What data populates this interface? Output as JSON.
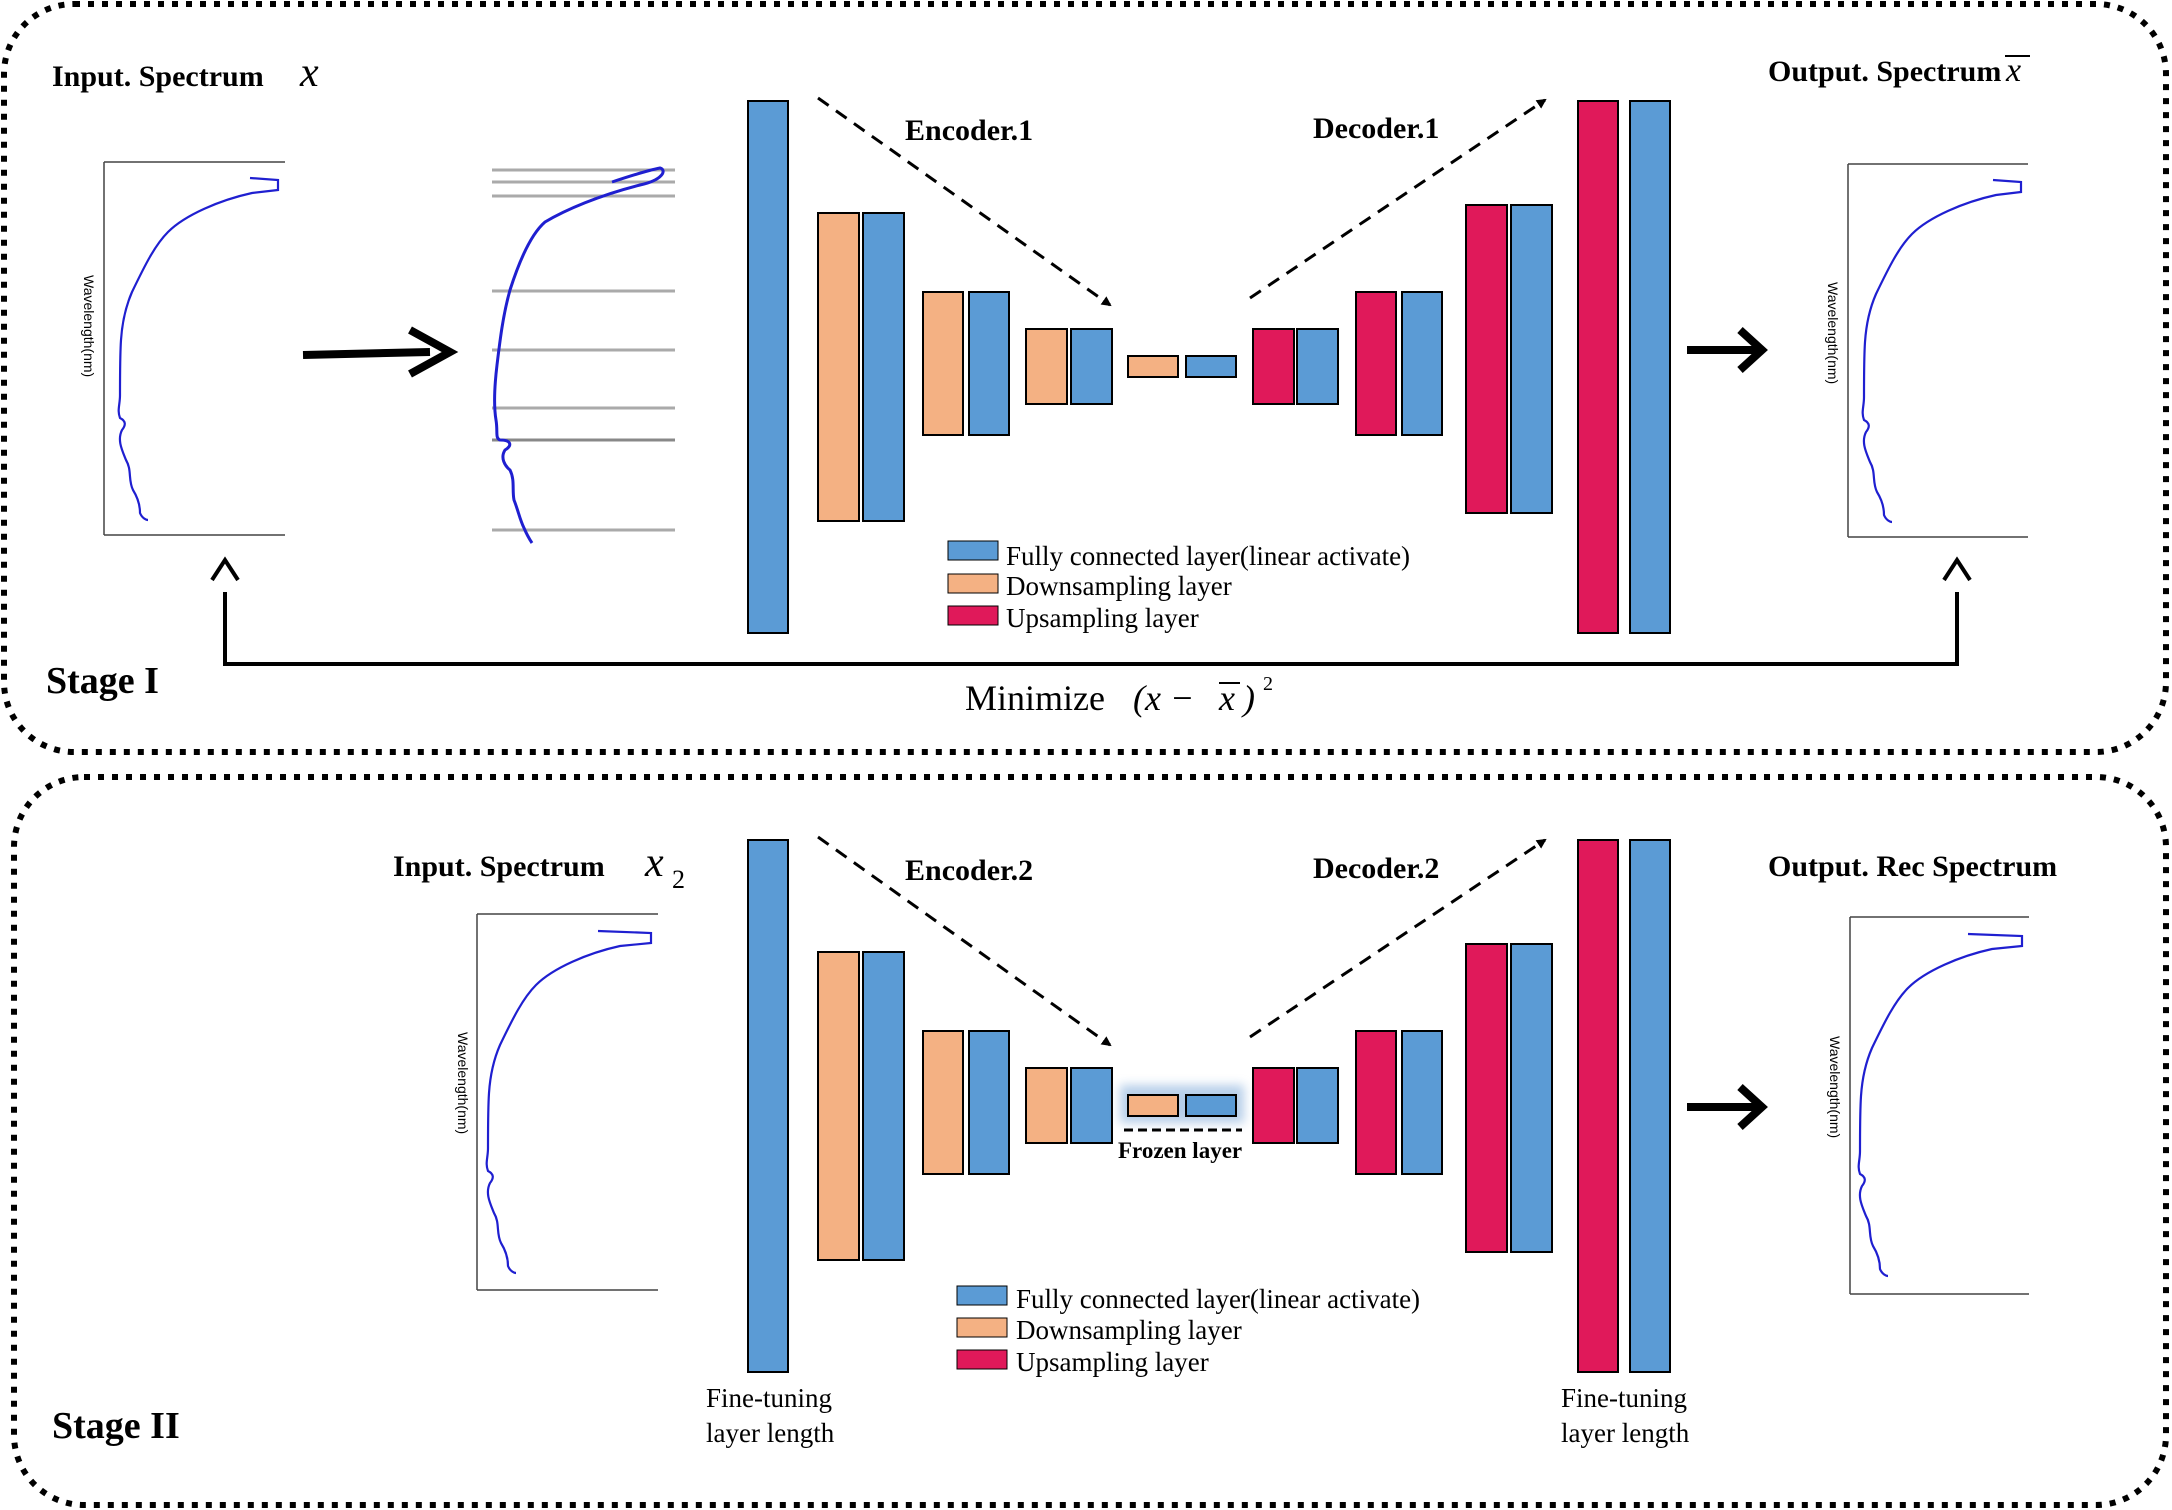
{
  "colors": {
    "fully_connected": "#5B9BD5",
    "downsampling": "#F4B183",
    "upsampling": "#E0195A",
    "spectrum_line": "#1F1FD0",
    "stroke": "#000000"
  },
  "stage1": {
    "label": "Stage I",
    "input_title": "Input. Spectrum",
    "input_symbol": "x",
    "output_title": "Output. Spectrum",
    "output_symbol": "x",
    "encoder_label": "Encoder.1",
    "decoder_label": "Decoder.1",
    "loss_label": "Minimize",
    "loss_formula_open": "(x − ",
    "loss_formula_xbar": "x",
    "loss_formula_close": ")",
    "loss_exponent": "2",
    "axis_label": "Wavelength(nm)",
    "legend": [
      {
        "label": "Fully connected layer(linear activate)",
        "kind": "fully_connected"
      },
      {
        "label": "Downsampling layer",
        "kind": "downsampling"
      },
      {
        "label": "Upsampling layer",
        "kind": "upsampling"
      }
    ]
  },
  "stage2": {
    "label": "Stage II",
    "input_title": "Input. Spectrum",
    "input_symbol": "x",
    "input_subscript": "2",
    "output_title": "Output. Rec Spectrum",
    "encoder_label": "Encoder.2",
    "decoder_label": "Decoder.2",
    "frozen_label": "Frozen layer",
    "finetune_left_line1": "Fine-tuning",
    "finetune_left_line2": "layer length",
    "finetune_right_line1": "Fine-tuning",
    "finetune_right_line2": "layer length",
    "axis_label": "Wavelength(nm)",
    "legend": [
      {
        "label": "Fully connected layer(linear activate)",
        "kind": "fully_connected"
      },
      {
        "label": "Downsampling layer",
        "kind": "downsampling"
      },
      {
        "label": "Upsampling layer",
        "kind": "upsampling"
      }
    ]
  }
}
